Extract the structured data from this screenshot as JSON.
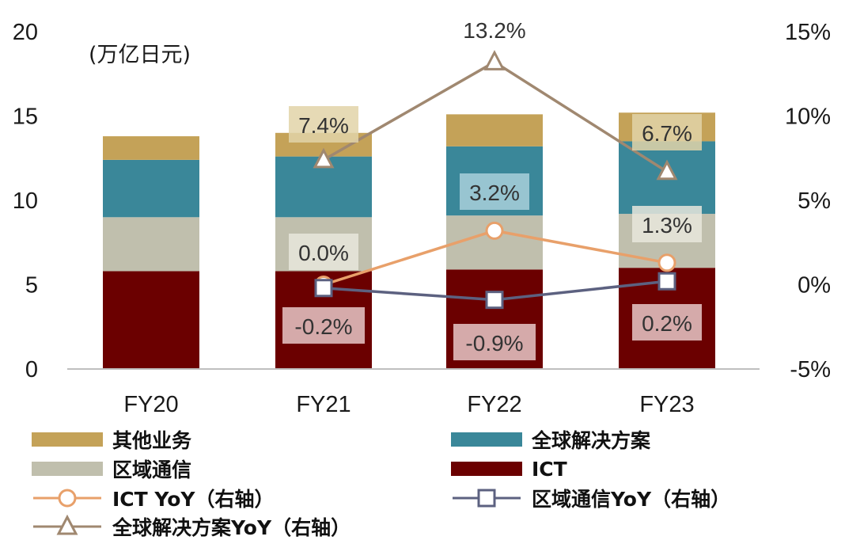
{
  "chart_data": {
    "type": "bar",
    "categories": [
      "FY20",
      "FY21",
      "FY22",
      "FY23"
    ],
    "unit_label": "(万亿日元)",
    "y_left": {
      "ticks": [
        "0",
        "5",
        "10",
        "15",
        "20"
      ],
      "range": [
        0,
        20
      ]
    },
    "y_right": {
      "ticks": [
        "-5%",
        "0%",
        "5%",
        "10%",
        "15%"
      ],
      "range": [
        -5,
        15
      ]
    },
    "bar_series": [
      {
        "name": "ICT",
        "color": "#6b0000",
        "values": [
          5.8,
          5.8,
          5.9,
          6.0
        ]
      },
      {
        "name": "区域通信",
        "color": "#c0bfad",
        "values": [
          3.2,
          3.2,
          3.2,
          3.2
        ]
      },
      {
        "name": "全球解决方案",
        "color": "#3a8799",
        "values": [
          3.4,
          3.6,
          4.1,
          4.3
        ]
      },
      {
        "name": "其他业务",
        "color": "#c4a258",
        "values": [
          1.4,
          1.4,
          1.9,
          1.7
        ]
      }
    ],
    "line_series": [
      {
        "name": "ICT YoY（右轴）",
        "color": "#e8a06a",
        "marker": "circle",
        "x": [
          "FY21",
          "FY22",
          "FY23"
        ],
        "values": [
          0.0,
          3.2,
          1.3
        ],
        "labels": [
          "0.0%",
          "3.2%",
          "1.3%"
        ]
      },
      {
        "name": "区域通信YoY（右轴）",
        "color": "#5c6180",
        "marker": "square",
        "x": [
          "FY21",
          "FY22",
          "FY23"
        ],
        "values": [
          -0.2,
          -0.9,
          0.2
        ],
        "labels": [
          "-0.2%",
          "-0.9%",
          "0.2%"
        ]
      },
      {
        "name": "全球解决方案YoY（右轴）",
        "color": "#a08870",
        "marker": "triangle",
        "x": [
          "FY21",
          "FY22",
          "FY23"
        ],
        "values": [
          7.4,
          13.2,
          6.7
        ],
        "labels": [
          "7.4%",
          "13.2%",
          "6.7%"
        ]
      }
    ],
    "legend": [
      {
        "label": "其他业务",
        "kind": "box",
        "color": "#c4a258"
      },
      {
        "label": "全球解决方案",
        "kind": "box",
        "color": "#3a8799"
      },
      {
        "label": "区域通信",
        "kind": "box",
        "color": "#c0bfad"
      },
      {
        "label": "ICT",
        "kind": "box",
        "color": "#6b0000"
      },
      {
        "label": "ICT YoY（右轴）",
        "kind": "circle",
        "color": "#e8a06a"
      },
      {
        "label": "区域通信YoY（右轴）",
        "kind": "square",
        "color": "#5c6180"
      },
      {
        "label": "全球解决方案YoY（右轴）",
        "kind": "triangle",
        "color": "#a08870"
      }
    ]
  }
}
